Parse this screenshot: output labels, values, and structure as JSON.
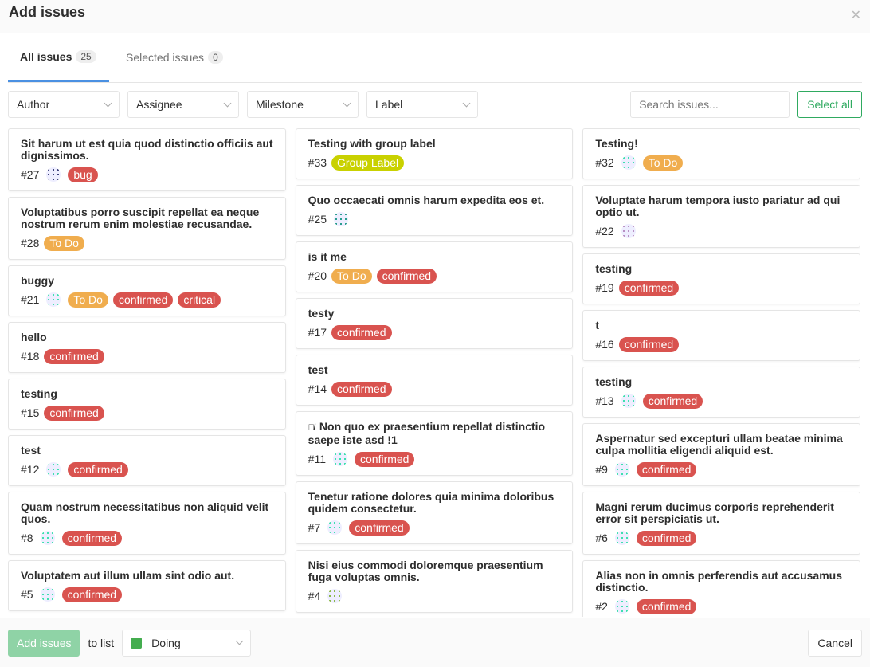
{
  "modal": {
    "title": "Add issues",
    "close_icon": "close-icon"
  },
  "tabs": [
    {
      "label": "All issues",
      "count": "25",
      "active": true
    },
    {
      "label": "Selected issues",
      "count": "0",
      "active": false
    }
  ],
  "filters": {
    "dropdowns": [
      "Author",
      "Assignee",
      "Milestone",
      "Label"
    ],
    "search_placeholder": "Search issues...",
    "select_all": "Select all"
  },
  "colors": {
    "bug": "#d9534f",
    "confirmed": "#d9534f",
    "critical": "#d9534f",
    "To Do": "#f0ad4e",
    "Group Label": "#c9d100",
    "accent": "#4a90e2",
    "success": "#2faa60"
  },
  "columns": [
    [
      {
        "title": "Sit harum ut est quia quod distinctio officiis aut dignissimos.",
        "id": "#27",
        "avatar": "#3b3f7a",
        "labels": [
          "bug"
        ]
      },
      {
        "title": "Voluptatibus porro suscipit repellat ea neque nostrum rerum enim molestiae recusandae.",
        "id": "#28",
        "labels": [
          "To Do"
        ]
      },
      {
        "title": "buggy",
        "id": "#21",
        "avatar": "#3ee0b0",
        "labels": [
          "To Do",
          "confirmed",
          "critical"
        ]
      },
      {
        "title": "hello",
        "id": "#18",
        "labels": [
          "confirmed"
        ]
      },
      {
        "title": "testing",
        "id": "#15",
        "labels": [
          "confirmed"
        ]
      },
      {
        "title": "test",
        "id": "#12",
        "avatar": "#3ee0b0",
        "labels": [
          "confirmed"
        ]
      },
      {
        "title": "Quam nostrum necessitatibus non aliquid velit quos.",
        "id": "#8",
        "avatar": "#3ee0b0",
        "labels": [
          "confirmed"
        ]
      },
      {
        "title": "Voluptatem aut illum ullam sint odio aut.",
        "id": "#5",
        "avatar": "#3ee0b0",
        "labels": [
          "confirmed"
        ]
      }
    ],
    [
      {
        "title": "Testing with group label",
        "id": "#33",
        "labels": [
          "Group Label"
        ]
      },
      {
        "title": "Quo occaecati omnis harum expedita eos et.",
        "id": "#25",
        "avatar": "#2a9d8f",
        "labels": []
      },
      {
        "title": "is it me",
        "id": "#20",
        "labels": [
          "To Do",
          "confirmed"
        ]
      },
      {
        "title": "testy",
        "id": "#17",
        "labels": [
          "confirmed"
        ]
      },
      {
        "title": "test",
        "id": "#14",
        "labels": [
          "confirmed"
        ]
      },
      {
        "title": "Non quo ex praesentium repellat distinctio saepe iste asd !1",
        "id": "#11",
        "confidential": true,
        "avatar": "#3ee0b0",
        "labels": [
          "confirmed"
        ]
      },
      {
        "title": "Tenetur ratione dolores quia minima doloribus quidem consectetur.",
        "id": "#7",
        "avatar": "#3ee0b0",
        "labels": [
          "confirmed"
        ]
      },
      {
        "title": "Nisi eius commodi doloremque praesentium fuga voluptas omnis.",
        "id": "#4",
        "avatar": "#8cb84a",
        "labels": []
      }
    ],
    [
      {
        "title": "Testing!",
        "id": "#32",
        "avatar": "#3ee0b0",
        "labels": [
          "To Do"
        ]
      },
      {
        "title": "Voluptate harum tempora iusto pariatur ad qui optio ut.",
        "id": "#22",
        "avatar": "#b98fc4",
        "labels": []
      },
      {
        "title": "testing",
        "id": "#19",
        "labels": [
          "confirmed"
        ]
      },
      {
        "title": "t",
        "id": "#16",
        "labels": [
          "confirmed"
        ]
      },
      {
        "title": "testing",
        "id": "#13",
        "avatar": "#3ee0b0",
        "labels": [
          "confirmed"
        ]
      },
      {
        "title": "Aspernatur sed excepturi ullam beatae minima culpa mollitia eligendi aliquid est.",
        "id": "#9",
        "avatar": "#3ee0b0",
        "labels": [
          "confirmed"
        ]
      },
      {
        "title": "Magni rerum ducimus corporis reprehenderit error sit perspiciatis ut.",
        "id": "#6",
        "avatar": "#3ee0b0",
        "labels": [
          "confirmed"
        ]
      },
      {
        "title": "Alias non in omnis perferendis aut accusamus distinctio.",
        "id": "#2",
        "avatar": "#3ee0b0",
        "labels": [
          "confirmed"
        ]
      }
    ]
  ],
  "footer": {
    "add_label": "Add issues",
    "to_list": "to list",
    "list_name": "Doing",
    "list_color": "#44ad4f",
    "cancel": "Cancel"
  }
}
